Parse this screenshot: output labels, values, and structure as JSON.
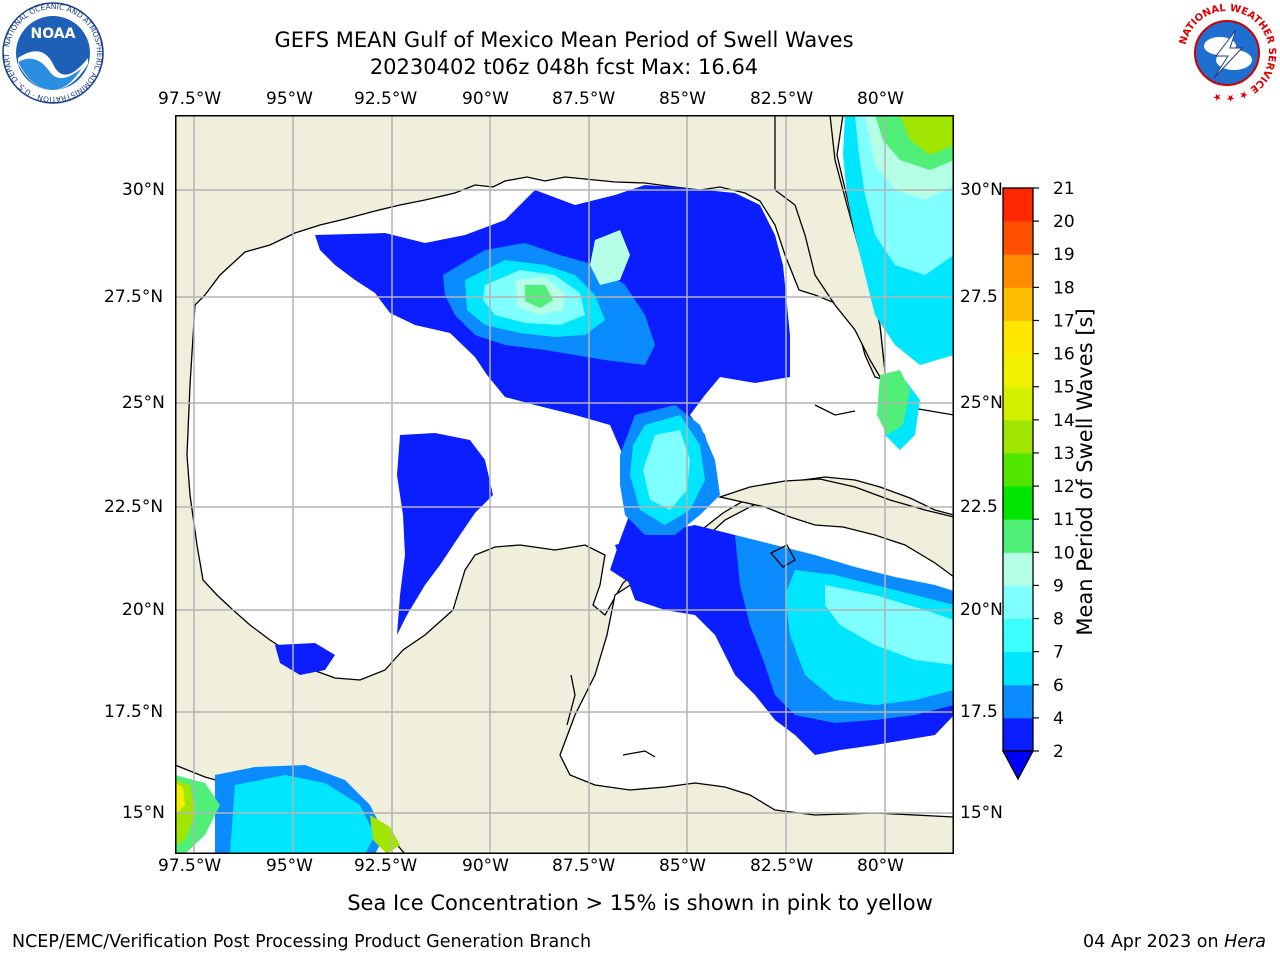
{
  "title": {
    "line1": "GEFS MEAN Gulf of Mexico Mean Period of Swell Waves",
    "line2": "20230402 t06z 048h fcst   Max: 16.64"
  },
  "map": {
    "lon_labels": [
      "97.5°W",
      "95°W",
      "92.5°W",
      "90°W",
      "87.5°W",
      "85°W",
      "82.5°W",
      "80°W"
    ],
    "lat_labels_left": [
      "30°N",
      "27.5°N",
      "25°N",
      "22.5°N",
      "20°N",
      "17.5°N",
      "15°N"
    ],
    "lat_labels_right": [
      "30°N",
      "27.5",
      "25°N",
      "22.5",
      "20°N",
      "17.5",
      "15°N"
    ],
    "colors": {
      "land": "#efefdc",
      "no_swell": "#ffffff",
      "grid": "#b4b4b4"
    }
  },
  "colorbar": {
    "label": "Mean Period of Swell Waves [s]",
    "ticks": [
      "2",
      "4",
      "6",
      "7",
      "8",
      "9",
      "10",
      "11",
      "12",
      "13",
      "14",
      "15",
      "16",
      "17",
      "18",
      "19",
      "20",
      "21"
    ],
    "colors": [
      "#0a1eff",
      "#0a8cff",
      "#00e6ff",
      "#3cffff",
      "#7fffff",
      "#b4ffe6",
      "#50f078",
      "#00e600",
      "#50e600",
      "#a0e600",
      "#d2f000",
      "#f0f000",
      "#ffe600",
      "#ffbe00",
      "#ff8c00",
      "#ff5000",
      "#ff2800",
      "#ff0000"
    ],
    "under_color": "#0000ff"
  },
  "note": "Sea Ice Concentration > 15% is shown in pink to yellow",
  "footer": {
    "left": "NCEP/EMC/Verification Post Processing Product Generation Branch",
    "right_date": "04 Apr 2023 on ",
    "right_machine": "Hera"
  },
  "logos": {
    "noaa_text": "NOAA",
    "noaa_ring": "NATIONAL OCEANIC AND ATMOSPHERIC ADMINISTRATION · U.S. DEPARTMENT OF COMMERCE ·",
    "nws_ring": "NATIONAL WEATHER SERVICE ★ ★ ★"
  }
}
